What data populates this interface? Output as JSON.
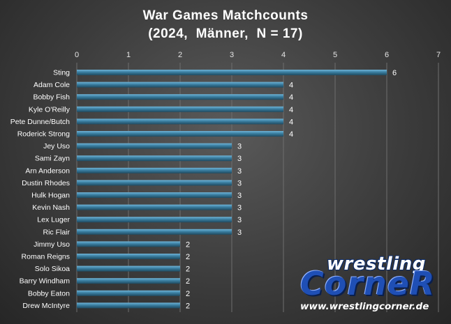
{
  "chart_data": {
    "type": "bar",
    "orientation": "horizontal",
    "title": "War Games Matchcounts",
    "subtitle": "(2024,  Männer,  N = 17)",
    "xlim": [
      0,
      7
    ],
    "xticks": [
      0,
      1,
      2,
      3,
      4,
      5,
      6,
      7
    ],
    "axis_position": "top",
    "grid": true,
    "bar_color": "#3a7ea0",
    "categories": [
      "Sting",
      "Adam Cole",
      "Bobby Fish",
      "Kyle O'Reilly",
      "Pete Dunne/Butch",
      "Roderick Strong",
      "Jey Uso",
      "Sami Zayn",
      "Arn Anderson",
      "Dustin Rhodes",
      "Hulk Hogan",
      "Kevin Nash",
      "Lex Luger",
      "Ric Flair",
      "Jimmy Uso",
      "Roman Reigns",
      "Solo Sikoa",
      "Barry Windham",
      "Bobby Eaton",
      "Drew McIntyre"
    ],
    "values": [
      6,
      4,
      4,
      4,
      4,
      4,
      3,
      3,
      3,
      3,
      3,
      3,
      3,
      3,
      2,
      2,
      2,
      2,
      2,
      2
    ]
  },
  "logo": {
    "top_text": "wrestling",
    "main_text": "CorneR",
    "url": "www.wrestlingcorner.de"
  }
}
